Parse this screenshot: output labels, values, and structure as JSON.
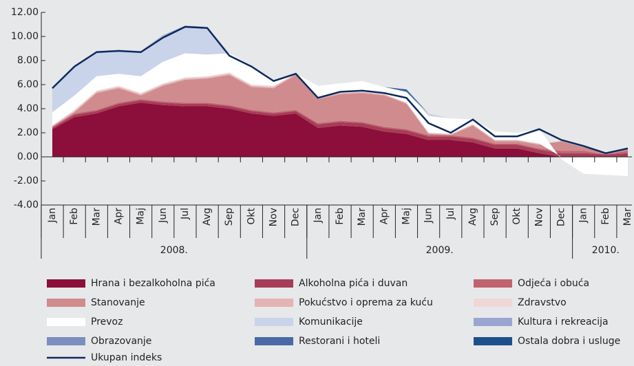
{
  "chart_data": {
    "type": "stacked-area",
    "categories": [
      "Jan",
      "Feb",
      "Mar",
      "Apr",
      "Maj",
      "Jun",
      "Jul",
      "Avg",
      "Sep",
      "Okt",
      "Nov",
      "Dec",
      "Jan",
      "Feb",
      "Mar",
      "Apr",
      "Maj",
      "Jun",
      "Jul",
      "Avg",
      "Sep",
      "Okt",
      "Nov",
      "Dec",
      "Jan",
      "Feb",
      "Mar"
    ],
    "groups": [
      {
        "label": "2008.",
        "count": 12
      },
      {
        "label": "2009.",
        "count": 12
      },
      {
        "label": "2010.",
        "count": 3
      }
    ],
    "ylim": [
      -4,
      12
    ],
    "yticks": [
      {
        "value": -4,
        "label": "-4.00"
      },
      {
        "value": -2,
        "label": "-2.00"
      },
      {
        "value": 0,
        "label": "0.00"
      },
      {
        "value": 2,
        "label": "2.00"
      },
      {
        "value": 4,
        "label": "4.00"
      },
      {
        "value": 6,
        "label": "6.00"
      },
      {
        "value": 8,
        "label": "8.00"
      },
      {
        "value": 10,
        "label": "10.00"
      },
      {
        "value": 12,
        "label": "12.00"
      }
    ],
    "grid": false,
    "series": [
      {
        "name": "Hrana i bezalkoholna pića",
        "color": "#8b0f3a",
        "values": [
          2.3,
          3.3,
          3.6,
          4.2,
          4.5,
          4.3,
          4.2,
          4.2,
          4.0,
          3.6,
          3.4,
          3.6,
          2.4,
          2.6,
          2.5,
          2.1,
          1.9,
          1.4,
          1.4,
          1.2,
          0.7,
          0.7,
          0.3,
          0,
          0,
          0,
          0
        ]
      },
      {
        "name": "Alkoholna pića i duvan",
        "color": "#a83c56",
        "values": [
          0.1,
          0.2,
          0.2,
          0.2,
          0.2,
          0.2,
          0.2,
          0.2,
          0.2,
          0.2,
          0.2,
          0.2,
          0.3,
          0.3,
          0.3,
          0.3,
          0.3,
          0.3,
          0.3,
          0.3,
          0.3,
          0.3,
          0.3,
          0.3,
          0.3,
          0.2,
          0.3
        ]
      },
      {
        "name": "Odjeća i obuća",
        "color": "#c0636f",
        "values": [
          0.1,
          0.1,
          0.1,
          0.1,
          0.1,
          0.1,
          0.1,
          0.1,
          0.1,
          0.1,
          0.1,
          0.1,
          0.1,
          0.1,
          0.1,
          0.1,
          0.1,
          0.1,
          0.1,
          0.1,
          0.1,
          0.1,
          0.1,
          0.2,
          0.2,
          0,
          0.2
        ]
      },
      {
        "name": "Stanovanje",
        "color": "#d08b8f",
        "values": [
          0,
          0.1,
          1.4,
          1.2,
          0.3,
          1.3,
          1.9,
          2.0,
          2.5,
          1.9,
          2.0,
          2.9,
          2.0,
          2.2,
          2.4,
          2.6,
          2.1,
          0.1,
          0,
          1.0,
          0.2,
          0.2,
          0.3,
          0.8,
          0.3,
          0.1,
          0.2
        ]
      },
      {
        "name": "Pokućstvo i oprema za kuću",
        "color": "#e4b3b3",
        "values": [
          0.1,
          0.1,
          0.1,
          0.1,
          0.1,
          0.1,
          0.1,
          0.1,
          0.1,
          0.1,
          0.1,
          0.1,
          0.1,
          0.1,
          0.1,
          0.1,
          0.1,
          0.1,
          0.1,
          0.1,
          0.1,
          0.1,
          0.1,
          0,
          0,
          0,
          0
        ]
      },
      {
        "name": "Zdravstvo",
        "color": "#f0d6d6",
        "values": [
          0,
          0.1,
          0.1,
          0.1,
          0.1,
          0.1,
          0.1,
          0.1,
          0.1,
          0.1,
          0.1,
          0,
          0,
          0,
          0,
          0,
          0,
          0,
          0,
          0,
          0,
          0,
          0,
          0,
          0,
          0,
          0
        ]
      },
      {
        "name": "Prevoz",
        "color": "#ffffff",
        "values": [
          1.1,
          1.2,
          1.2,
          1.0,
          1.4,
          1.8,
          2.0,
          1.8,
          1.6,
          1.6,
          0.5,
          0,
          1.0,
          0.8,
          0.9,
          0.6,
          0.9,
          1.4,
          1.3,
          0.4,
          0.7,
          0.6,
          1.2,
          -0.2,
          -1.4,
          -1.5,
          -1.6
        ]
      },
      {
        "name": "Komunikacije",
        "color": "#c9d3ea",
        "values": [
          2.0,
          2.5,
          2.1,
          2.0,
          2.1,
          2.1,
          2.2,
          2.3,
          0,
          0,
          0,
          0,
          0,
          0,
          0,
          0,
          0,
          0.2,
          0,
          0,
          0,
          0,
          0,
          0,
          0,
          0,
          0
        ]
      },
      {
        "name": "Kultura i rekreacija",
        "color": "#9aa6cf",
        "values": [
          0,
          0,
          0,
          0,
          0,
          0.1,
          0.1,
          0,
          0,
          0,
          0,
          0,
          0,
          0,
          0,
          0,
          0,
          0,
          0,
          0,
          0,
          0,
          0,
          0,
          0,
          0,
          0
        ]
      },
      {
        "name": "Obrazovanje",
        "color": "#7d8fbf",
        "values": [
          0,
          0,
          0,
          0,
          0,
          0,
          0,
          0,
          0,
          0,
          0,
          0,
          0,
          0,
          0,
          0,
          0,
          0,
          0,
          0,
          0,
          0,
          0,
          0,
          0,
          0,
          0
        ]
      },
      {
        "name": "Restorani i hoteli",
        "color": "#4a6aa5",
        "values": [
          0,
          0,
          0,
          0,
          0,
          0,
          0,
          0,
          0,
          0,
          0,
          0,
          0,
          0,
          0,
          0,
          0.1,
          0,
          0,
          0,
          0,
          0,
          0,
          0,
          0,
          0,
          0
        ]
      },
      {
        "name": "Ostala dobra i usluge",
        "color": "#1f4f8b",
        "values": [
          0,
          0,
          0,
          0,
          0,
          0,
          0,
          0,
          0,
          0,
          0,
          0,
          0,
          0,
          0,
          0,
          0.1,
          0,
          0,
          0,
          0,
          0,
          0,
          0,
          0,
          0,
          0
        ]
      }
    ],
    "total": {
      "name": "Ukupan indeks",
      "color": "#0d2a5e",
      "values": [
        5.7,
        7.5,
        8.7,
        8.8,
        8.7,
        9.9,
        10.8,
        10.7,
        8.4,
        7.5,
        6.3,
        6.9,
        4.9,
        5.4,
        5.5,
        5.3,
        4.9,
        2.8,
        2.0,
        3.1,
        1.7,
        1.7,
        2.3,
        1.4,
        0.9,
        0.3,
        0.7
      ]
    }
  }
}
